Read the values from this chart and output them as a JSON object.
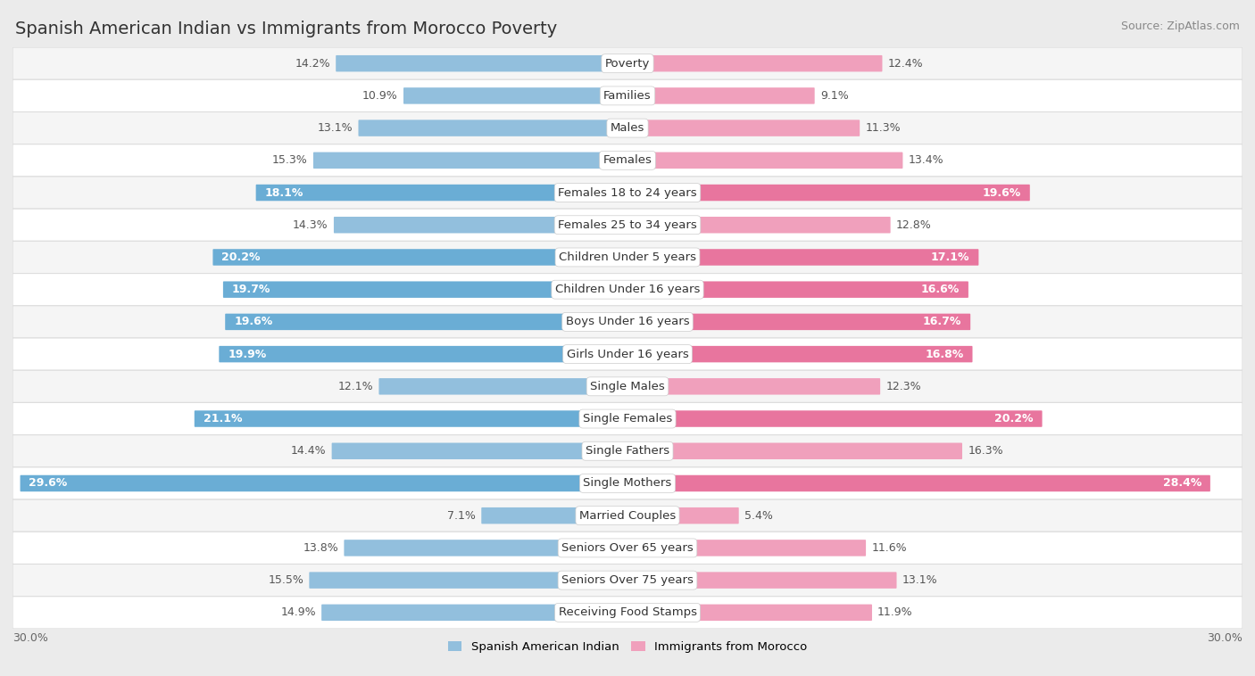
{
  "title": "Spanish American Indian vs Immigrants from Morocco Poverty",
  "source": "Source: ZipAtlas.com",
  "categories": [
    "Poverty",
    "Families",
    "Males",
    "Females",
    "Females 18 to 24 years",
    "Females 25 to 34 years",
    "Children Under 5 years",
    "Children Under 16 years",
    "Boys Under 16 years",
    "Girls Under 16 years",
    "Single Males",
    "Single Females",
    "Single Fathers",
    "Single Mothers",
    "Married Couples",
    "Seniors Over 65 years",
    "Seniors Over 75 years",
    "Receiving Food Stamps"
  ],
  "left_values": [
    14.2,
    10.9,
    13.1,
    15.3,
    18.1,
    14.3,
    20.2,
    19.7,
    19.6,
    19.9,
    12.1,
    21.1,
    14.4,
    29.6,
    7.1,
    13.8,
    15.5,
    14.9
  ],
  "right_values": [
    12.4,
    9.1,
    11.3,
    13.4,
    19.6,
    12.8,
    17.1,
    16.6,
    16.7,
    16.8,
    12.3,
    20.2,
    16.3,
    28.4,
    5.4,
    11.6,
    13.1,
    11.9
  ],
  "left_color_normal": "#92bfdd",
  "right_color_normal": "#f0a0bc",
  "left_color_highlight": "#6aadd5",
  "right_color_highlight": "#e8759e",
  "highlight_rows": [
    4,
    6,
    7,
    8,
    9,
    11,
    13
  ],
  "row_bg_even": "#f5f5f5",
  "row_bg_odd": "#ffffff",
  "row_border_color": "#dddddd",
  "bg_color": "#ebebeb",
  "max_value": 30.0,
  "legend_left": "Spanish American Indian",
  "legend_right": "Immigrants from Morocco",
  "title_fontsize": 14,
  "source_fontsize": 9,
  "label_fontsize": 9.5,
  "value_fontsize": 9
}
